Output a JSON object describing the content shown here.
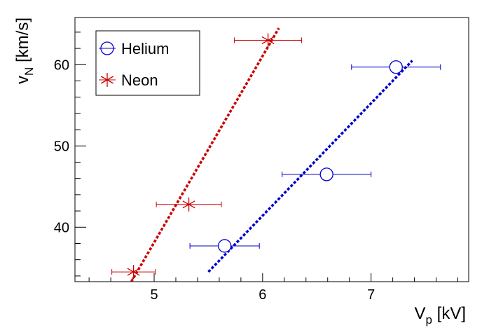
{
  "chart_data": {
    "type": "scatter",
    "xlim": [
      4.27,
      7.9
    ],
    "ylim": [
      33.3,
      65.8
    ],
    "x_ticks": [
      {
        "value": 5,
        "label": "5"
      },
      {
        "value": 6,
        "label": "6"
      },
      {
        "value": 7,
        "label": "7"
      }
    ],
    "y_ticks": [
      {
        "value": 40,
        "label": "40"
      },
      {
        "value": 50,
        "label": "50"
      },
      {
        "value": 60,
        "label": "60"
      }
    ],
    "x_minor_step": 0.2,
    "y_minor_step": 2,
    "grid": false,
    "legend_position": "top-left",
    "xlabel": {
      "main": "V",
      "sub": "p",
      "unit": " [kV]"
    },
    "ylabel": {
      "main": "v",
      "sub": "N",
      "unit": " [km/s]"
    },
    "series": [
      {
        "name": "Helium",
        "marker": "circle",
        "color": "#0000cc",
        "points": [
          {
            "x": 5.65,
            "y": 37.7,
            "xerr": 0.32
          },
          {
            "x": 6.59,
            "y": 46.5,
            "xerr": 0.41
          },
          {
            "x": 7.23,
            "y": 59.7,
            "xerr": 0.41
          }
        ],
        "fit": {
          "x": [
            5.5,
            7.38
          ],
          "y": [
            34.5,
            60.5
          ]
        }
      },
      {
        "name": "Neon",
        "marker": "star",
        "color": "#cc0000",
        "points": [
          {
            "x": 4.81,
            "y": 34.5,
            "xerr": 0.2
          },
          {
            "x": 5.32,
            "y": 42.8,
            "xerr": 0.3
          },
          {
            "x": 6.05,
            "y": 63.0,
            "xerr": 0.31
          }
        ],
        "fit": {
          "x": [
            4.79,
            6.15
          ],
          "y": [
            33.3,
            64.5
          ]
        }
      }
    ]
  }
}
